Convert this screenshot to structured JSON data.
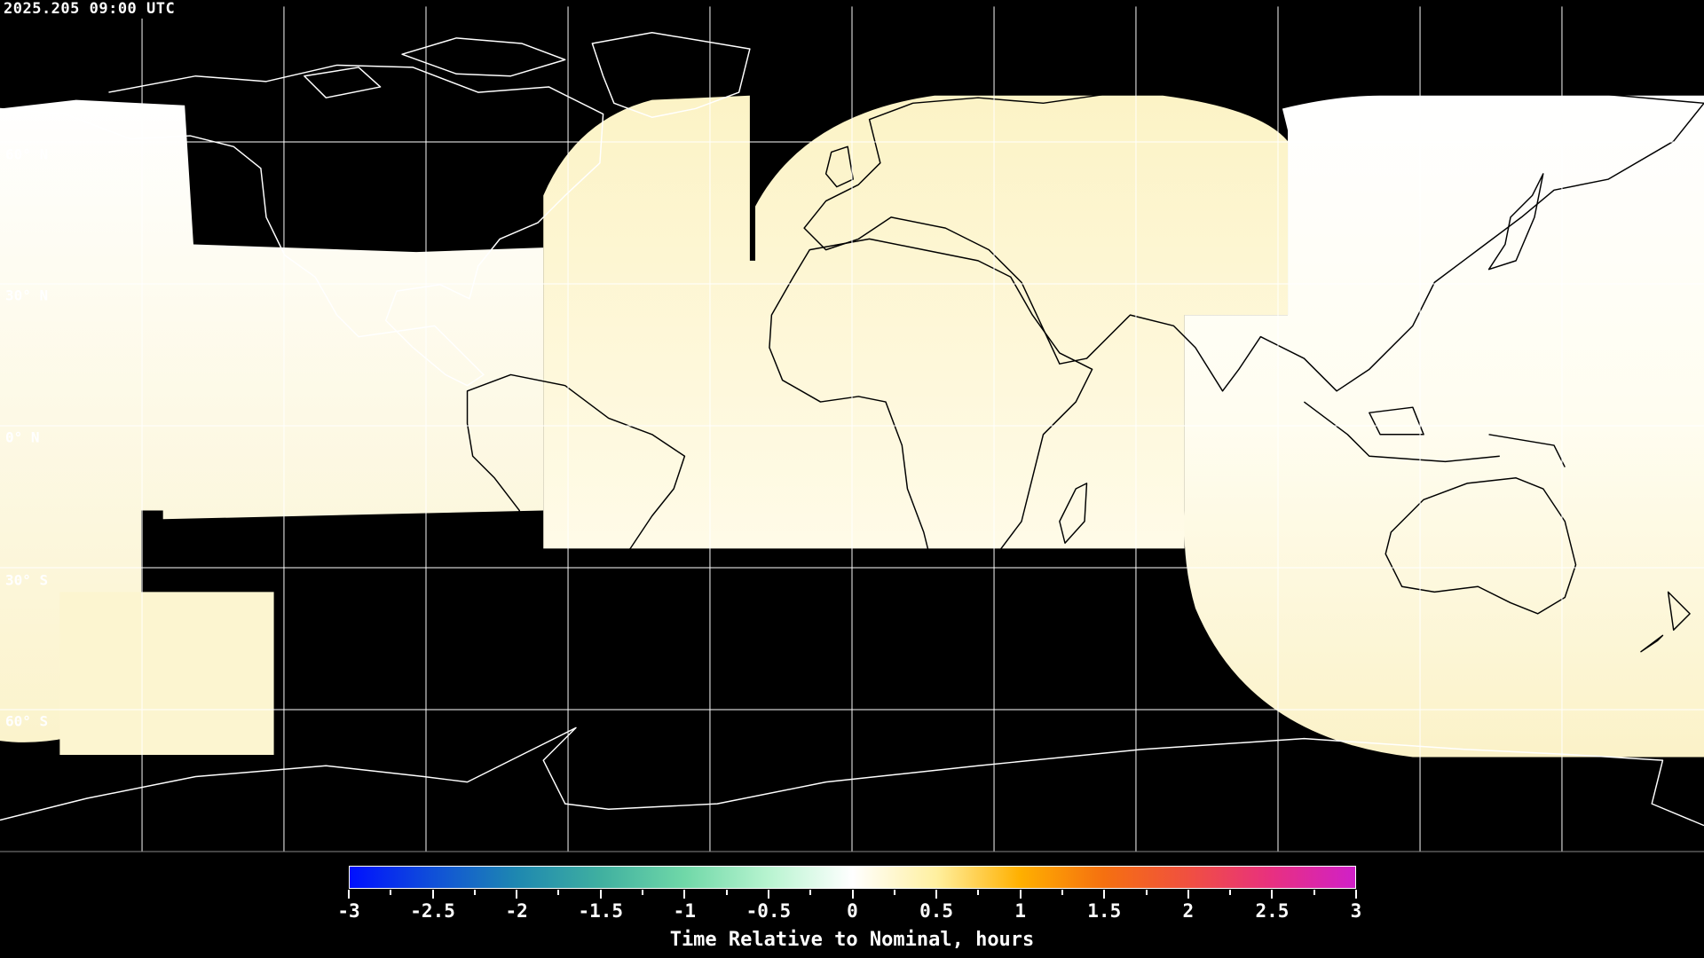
{
  "header": {
    "timestamp": "2025.205 09:00 UTC"
  },
  "map": {
    "projection": "equirectangular",
    "lat_labels": [
      "60° N",
      "30° N",
      "0° N",
      "30° S",
      "60° S"
    ],
    "gridline_spacing_degrees": 30,
    "colors": {
      "background": "#000000",
      "coastline": "#ffffff",
      "gridline": "#ffffff",
      "coverage_cream": "#fdf6d2",
      "coverage_white": "#fffff4"
    }
  },
  "colorbar": {
    "min": -3,
    "max": 3,
    "tick_labels": [
      "-3",
      "-2.5",
      "-2",
      "-1.5",
      "-1",
      "-0.5",
      "0",
      "0.5",
      "1",
      "1.5",
      "2",
      "2.5",
      "3"
    ],
    "label": "Time Relative to Nominal, hours",
    "colors": [
      "#0010ff",
      "#1050d8",
      "#1e88b0",
      "#40b0a0",
      "#70d8a8",
      "#b8f4d0",
      "#ffffff",
      "#fff0a0",
      "#ffb000",
      "#f57010",
      "#f05040",
      "#e83080",
      "#d020c8"
    ]
  }
}
